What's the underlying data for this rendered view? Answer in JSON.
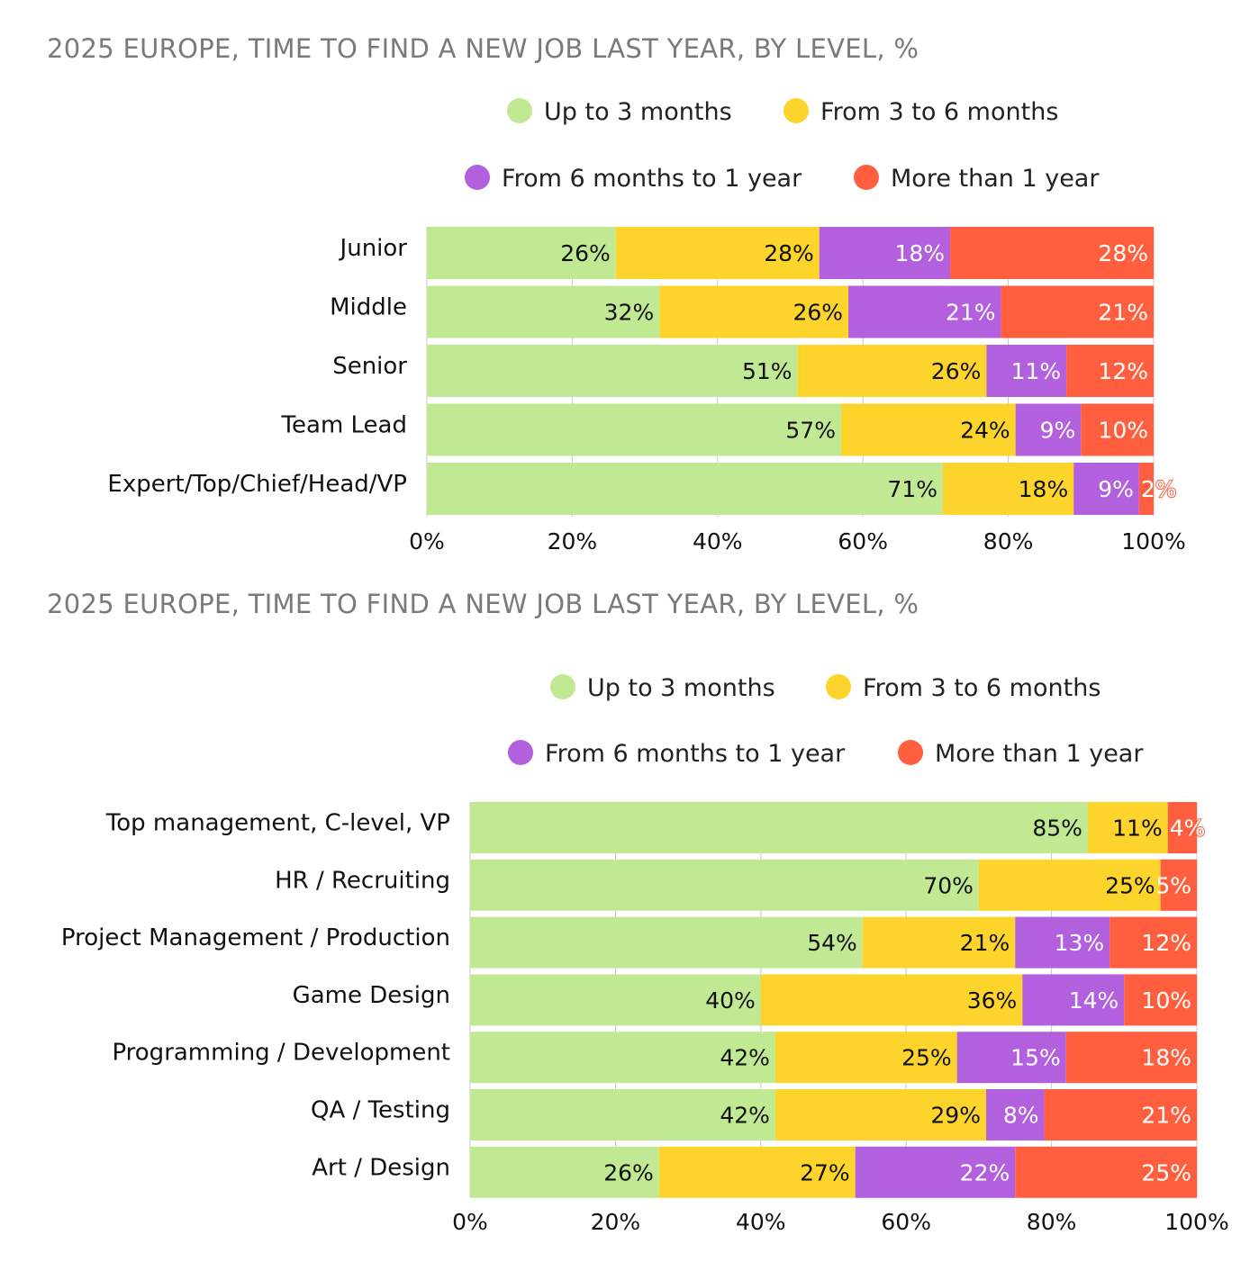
{
  "chart_data": [
    {
      "type": "bar",
      "orientation": "horizontal",
      "stacked": "percent",
      "title": "2025 EUROPE, TIME TO FIND A NEW JOB LAST YEAR, BY LEVEL, %",
      "categories": [
        "Junior",
        "Middle",
        "Senior",
        "Team Lead",
        "Expert/Top/Chief/Head/VP"
      ],
      "series": [
        {
          "name": "Up to 3 months",
          "color": "#c1e993",
          "label_color": "#111111",
          "values": [
            26,
            32,
            51,
            57,
            71
          ]
        },
        {
          "name": "From 3 to 6 months",
          "color": "#fdd42b",
          "label_color": "#111111",
          "values": [
            28,
            26,
            26,
            24,
            18
          ]
        },
        {
          "name": "From 6 months to 1 year",
          "color": "#b260dd",
          "label_color": "#ffffff",
          "values": [
            18,
            21,
            11,
            9,
            9
          ]
        },
        {
          "name": "More than 1 year",
          "color": "#ff5f3e",
          "label_color": "#ffffff",
          "values": [
            28,
            21,
            12,
            10,
            2
          ]
        }
      ],
      "xlim": [
        0,
        100
      ],
      "xticks": [
        "0%",
        "20%",
        "40%",
        "60%",
        "80%",
        "100%"
      ],
      "grid": true,
      "legend_position": "top-right"
    },
    {
      "type": "bar",
      "orientation": "horizontal",
      "stacked": "percent",
      "title": "2025 EUROPE, TIME TO FIND A NEW JOB LAST YEAR, BY LEVEL, %",
      "categories": [
        "Top management, C-level, VP",
        "HR / Recruiting",
        "Project Management / Production",
        "Game Design",
        "Programming / Development",
        "QA / Testing",
        "Art / Design"
      ],
      "series": [
        {
          "name": "Up to 3 months",
          "color": "#c1e993",
          "label_color": "#111111",
          "values": [
            85,
            70,
            54,
            40,
            42,
            42,
            26
          ]
        },
        {
          "name": "From 3 to 6 months",
          "color": "#fdd42b",
          "label_color": "#111111",
          "values": [
            11,
            25,
            21,
            36,
            25,
            29,
            27
          ]
        },
        {
          "name": "From 6 months to 1 year",
          "color": "#b260dd",
          "label_color": "#ffffff",
          "values": [
            null,
            null,
            13,
            14,
            15,
            8,
            22
          ]
        },
        {
          "name": "More than 1 year",
          "color": "#ff5f3e",
          "label_color": "#ffffff",
          "values": [
            4,
            5,
            12,
            10,
            18,
            21,
            25
          ]
        }
      ],
      "xlim": [
        0,
        100
      ],
      "xticks": [
        "0%",
        "20%",
        "40%",
        "60%",
        "80%",
        "100%"
      ],
      "grid": true,
      "legend_position": "top-right"
    }
  ]
}
